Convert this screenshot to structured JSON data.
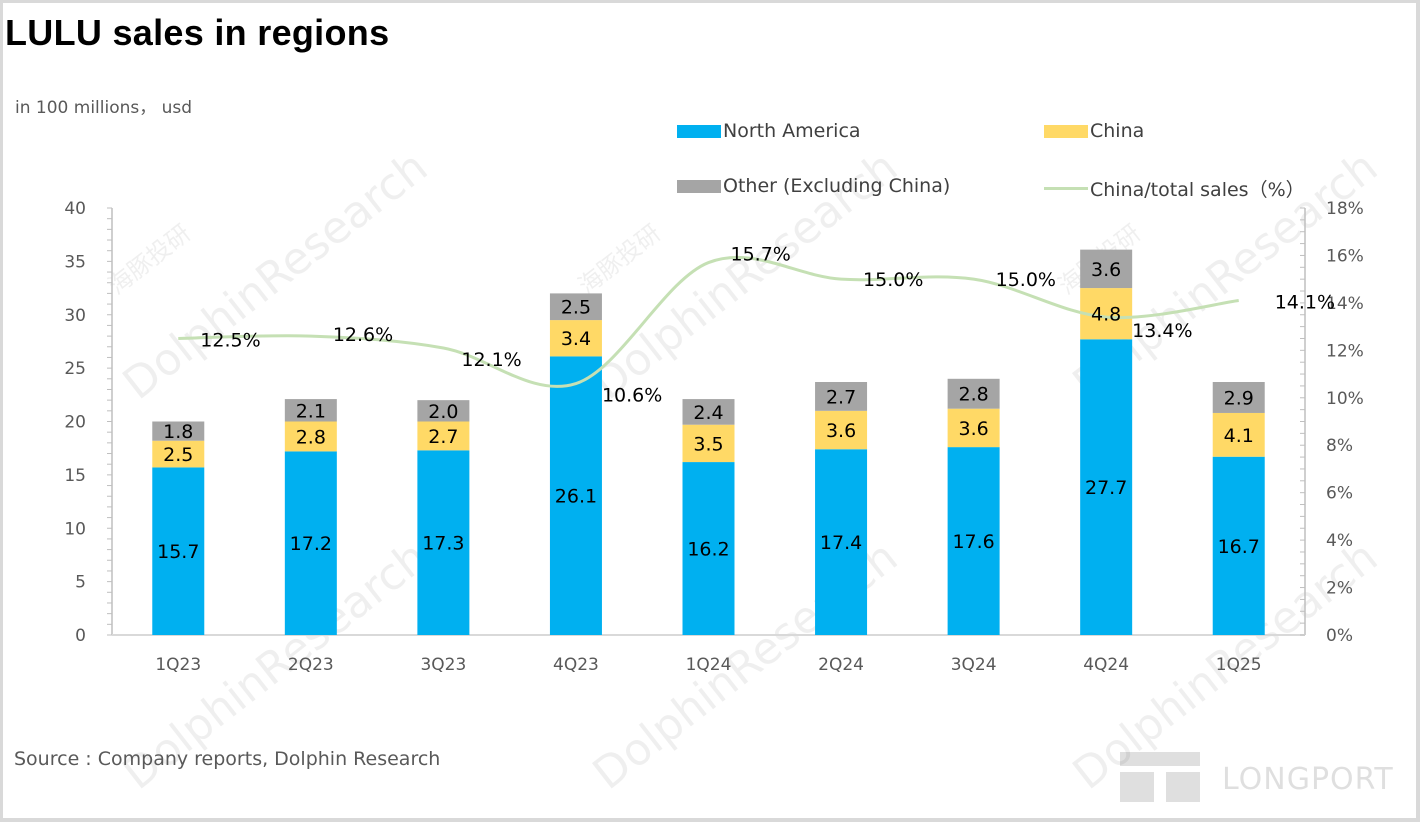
{
  "header": {
    "title": "LULU sales in regions",
    "unit_note": "in 100 millions， usd"
  },
  "footer": {
    "source": "Source : Company reports, Dolphin Research",
    "watermark_brand": "LONGPORT",
    "watermark_text": "DolphinResearch",
    "watermark_cn": "海豚投研"
  },
  "colors": {
    "north_america": "#00B0F0",
    "china": "#FFD966",
    "other": "#A5A5A5",
    "ratio_line": "#C5E0B4",
    "axis_text": "#595959",
    "axis_line": "#BFBFBF"
  },
  "chart_data": {
    "type": "bar",
    "stacked": true,
    "title": "LULU sales in regions",
    "ylabel": "in 100 millions， usd",
    "y2label": "China/total sales (%)",
    "categories": [
      "1Q23",
      "2Q23",
      "3Q23",
      "4Q23",
      "1Q24",
      "2Q24",
      "3Q24",
      "4Q24",
      "1Q25"
    ],
    "series": [
      {
        "name": "North America",
        "type": "bar",
        "axis": "left",
        "color": "#00B0F0",
        "values": [
          15.7,
          17.2,
          17.3,
          26.1,
          16.2,
          17.4,
          17.6,
          27.7,
          16.7
        ]
      },
      {
        "name": "China",
        "type": "bar",
        "axis": "left",
        "color": "#FFD966",
        "values": [
          2.5,
          2.8,
          2.7,
          3.4,
          3.5,
          3.6,
          3.6,
          4.8,
          4.1
        ]
      },
      {
        "name": "Other (Excluding China)",
        "type": "bar",
        "axis": "left",
        "color": "#A5A5A5",
        "values": [
          1.8,
          2.1,
          2.0,
          2.5,
          2.4,
          2.7,
          2.8,
          3.6,
          2.9
        ]
      },
      {
        "name": "China/total sales（%）",
        "type": "line",
        "axis": "right",
        "color": "#C5E0B4",
        "values": [
          12.5,
          12.6,
          12.1,
          10.6,
          15.7,
          15.0,
          15.0,
          13.4,
          14.1
        ],
        "labels": [
          "12.5%",
          "12.6%",
          "12.1%",
          "10.6%",
          "15.7%",
          "15.0%",
          "15.0%",
          "13.4%",
          "14.1%"
        ]
      }
    ],
    "ylim": [
      0,
      40
    ],
    "yticks": [
      "0",
      "5",
      "10",
      "15",
      "20",
      "25",
      "30",
      "35",
      "40"
    ],
    "y2lim": [
      0,
      18
    ],
    "y2ticks": [
      "0%",
      "2%",
      "4%",
      "6%",
      "8%",
      "10%",
      "12%",
      "14%",
      "16%",
      "18%"
    ],
    "grid": false,
    "legend": {
      "placement": "top-right",
      "items": [
        "North America",
        "China",
        "Other (Excluding China)",
        "China/total sales（%）"
      ]
    }
  }
}
